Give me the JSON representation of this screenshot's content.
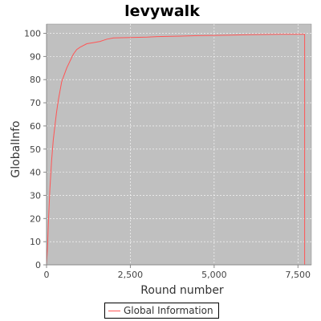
{
  "chart_data": {
    "type": "line",
    "title": "levywalk",
    "xlabel": "Round number",
    "ylabel": "GlobalInfo",
    "xlim": [
      0,
      7900
    ],
    "ylim": [
      0,
      104
    ],
    "x_ticks": [
      0,
      2500,
      5000,
      7500
    ],
    "x_tick_labels": [
      "0",
      "2,500",
      "5,000",
      "7,500"
    ],
    "y_ticks": [
      0,
      10,
      20,
      30,
      40,
      50,
      60,
      70,
      80,
      90,
      100
    ],
    "y_tick_labels": [
      "0",
      "10",
      "20",
      "30",
      "40",
      "50",
      "60",
      "70",
      "80",
      "90",
      "100"
    ],
    "grid": true,
    "legend_position": "bottom",
    "colors": {
      "plot_background": "#c0c0c0",
      "series": "#ff5555",
      "grid": "#ffffff"
    },
    "series": [
      {
        "name": "Global Information",
        "x": [
          0,
          30,
          60,
          100,
          150,
          200,
          250,
          300,
          350,
          400,
          450,
          500,
          550,
          600,
          700,
          800,
          900,
          1000,
          1200,
          1400,
          1600,
          1800,
          2000,
          2500,
          3000,
          3300,
          4000,
          4500,
          5000,
          5500,
          6000,
          6500,
          7000,
          7500,
          7700,
          7700
        ],
        "y": [
          0,
          8,
          20,
          33,
          45,
          54,
          60,
          66,
          71,
          75,
          79,
          81,
          83,
          85,
          88,
          91,
          93,
          94,
          95.5,
          96,
          96.5,
          97.5,
          98,
          98.2,
          98.4,
          98.6,
          98.8,
          99,
          99.1,
          99.2,
          99.4,
          99.5,
          99.6,
          99.6,
          99.6,
          0
        ]
      }
    ]
  }
}
